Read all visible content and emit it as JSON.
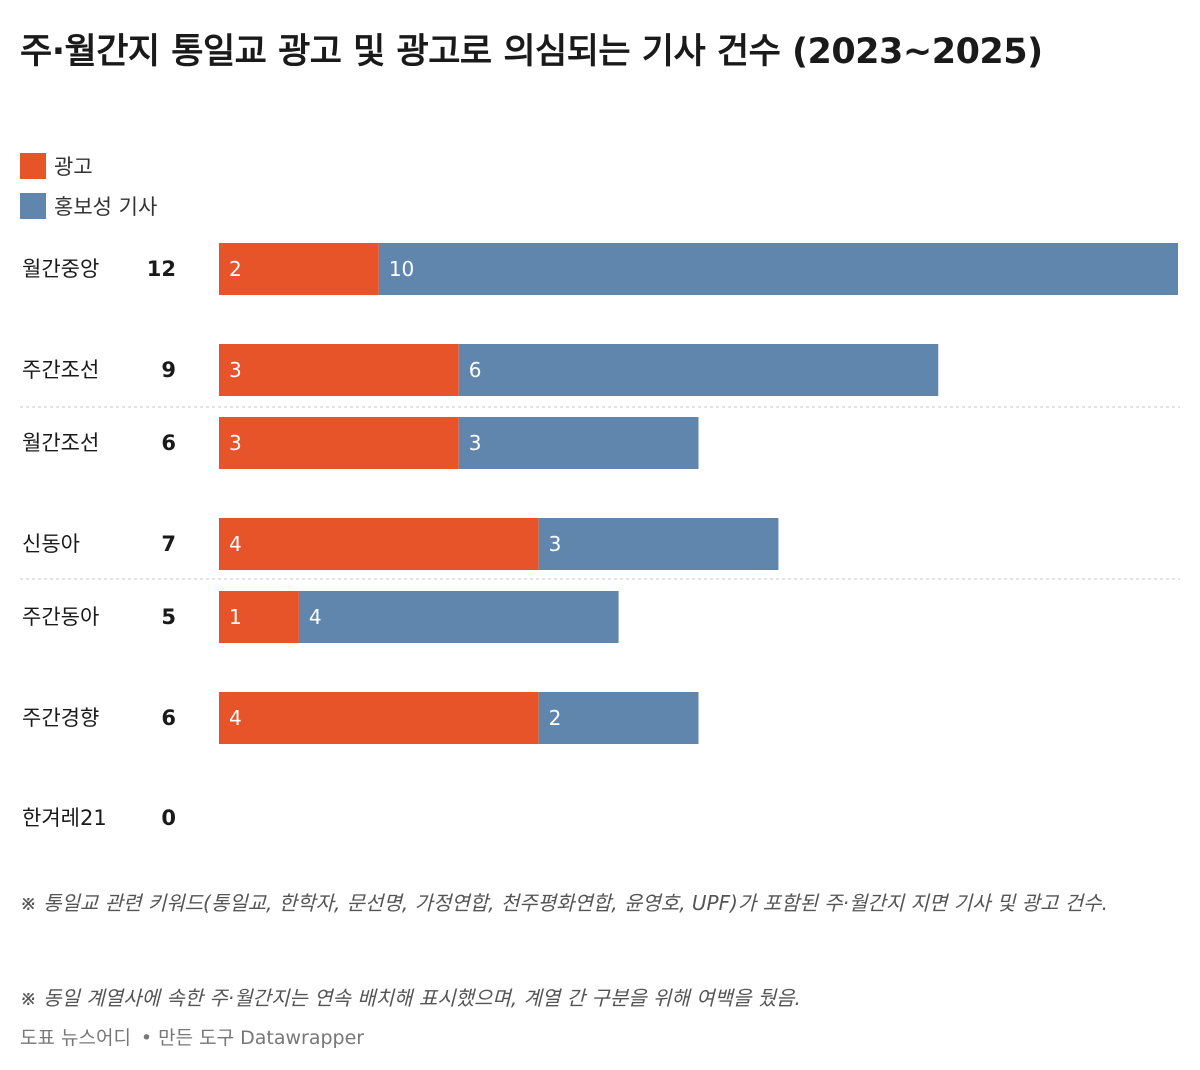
{
  "chart_data": {
    "type": "bar",
    "orientation": "horizontal",
    "stacked": true,
    "title": "주·월간지 통일교 광고 및 광고로 의심되는 기사 건수 (2023~2025)",
    "categories": [
      "월간중앙",
      "주간조선",
      "월간조선",
      "신동아",
      "주간동아",
      "주간경향",
      "한겨레21"
    ],
    "totals": [
      12,
      9,
      6,
      7,
      5,
      6,
      0
    ],
    "series": [
      {
        "name": "광고",
        "color": "#E8542A",
        "values": [
          2,
          3,
          3,
          4,
          1,
          4,
          0
        ]
      },
      {
        "name": "홍보성 기사",
        "color": "#6186AD",
        "values": [
          10,
          6,
          3,
          3,
          4,
          2,
          0
        ]
      }
    ],
    "xlim": [
      0,
      12
    ],
    "grid": false,
    "legend_position": "top-left",
    "separators_after_index": [
      1,
      3
    ]
  },
  "notes": [
    "※ 통일교 관련 키워드(통일교, 한학자, 문선명, 가정연합, 천주평화연합, 윤영호, UPF)가 포함된 주·월간지 지면 기사 및 광고 건수.",
    "※ 동일 계열사에 속한 주·월간지는 연속 배치해 표시했으며, 계열 간 구분을 위해 여백을 뒀음."
  ],
  "footer": {
    "source": "도표 뉴스어디",
    "tool": "만든 도구 Datawrapper"
  }
}
